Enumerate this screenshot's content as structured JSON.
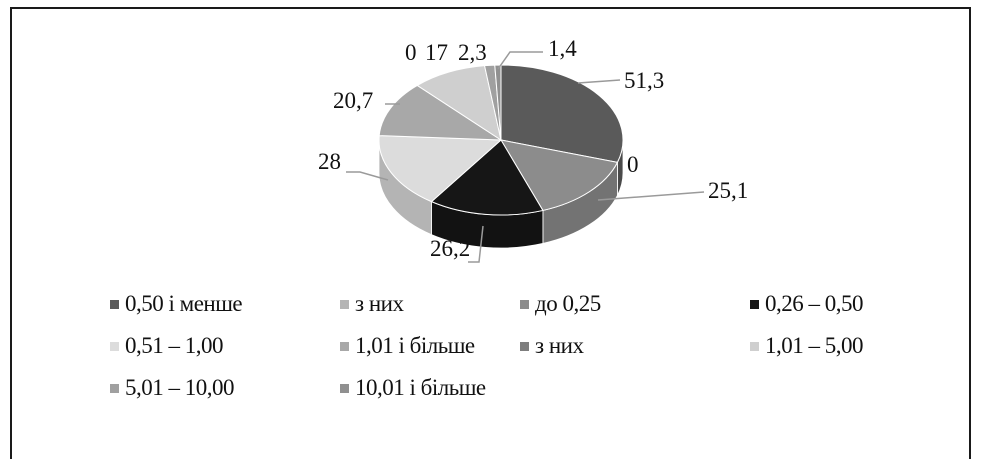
{
  "chart_data": {
    "type": "pie",
    "title": "",
    "categories": [
      "0,50 і менше",
      "з них",
      "до 0,25",
      "0,26 – 0,50",
      "0,51 – 1,00",
      "1,01 і більше",
      "з них",
      "1,01 – 5,00",
      "5,01 – 10,00",
      "10,01 і більше"
    ],
    "values": [
      51.3,
      0,
      25.1,
      26.2,
      28,
      20.7,
      0,
      17,
      2.3,
      1.4
    ],
    "value_labels": [
      "51,3",
      "0",
      "25,1",
      "26,2",
      "28",
      "20,7",
      "0",
      "17",
      "2,3",
      "1,4"
    ],
    "colors": [
      "#5a5a5a",
      "#b4b4b4",
      "#8c8c8c",
      "#161616",
      "#dcdcdc",
      "#a8a8a8",
      "#7e7e7e",
      "#cfcfcf",
      "#a0a0a0",
      "#909090"
    ],
    "legend_position": "bottom",
    "style": "3d"
  }
}
